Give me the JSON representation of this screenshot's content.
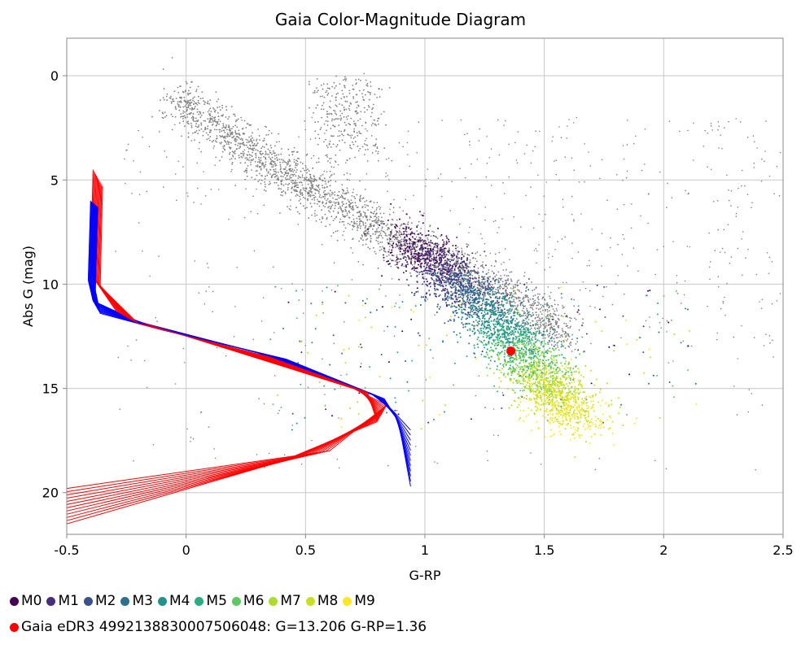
{
  "chart_data": {
    "type": "scatter",
    "title": "Gaia Color-Magnitude Diagram",
    "xlabel": "G-RP",
    "ylabel": "Abs G (mag)",
    "xlim": [
      -0.5,
      2.5
    ],
    "ylim": [
      22,
      -1.8
    ],
    "y_inverted": true,
    "grid": true,
    "x_ticks": [
      "-0.5",
      "0",
      "0.5",
      "1",
      "1.5",
      "2",
      "2.5"
    ],
    "y_ticks": [
      "0",
      "5",
      "10",
      "15",
      "20"
    ],
    "background_color": "#808080",
    "legend_placement": "bottom",
    "series": [
      {
        "name": "M0",
        "color": "#440154",
        "center": [
          1.0,
          8.6
        ]
      },
      {
        "name": "M1",
        "color": "#472d7b",
        "center": [
          1.08,
          9.3
        ]
      },
      {
        "name": "M2",
        "color": "#3b528b",
        "center": [
          1.15,
          10.2
        ]
      },
      {
        "name": "M3",
        "color": "#2c728e",
        "center": [
          1.25,
          11.1
        ]
      },
      {
        "name": "M4",
        "color": "#21918c",
        "center": [
          1.32,
          12.0
        ]
      },
      {
        "name": "M5",
        "color": "#28ae80",
        "center": [
          1.38,
          12.9
        ]
      },
      {
        "name": "M6",
        "color": "#5ec962",
        "center": [
          1.45,
          13.8
        ]
      },
      {
        "name": "M7",
        "color": "#addc30",
        "center": [
          1.5,
          14.6
        ]
      },
      {
        "name": "M8",
        "color": "#c8e020",
        "center": [
          1.55,
          15.3
        ]
      },
      {
        "name": "M9",
        "color": "#fde725",
        "center": [
          1.58,
          15.9
        ]
      }
    ],
    "highlight": {
      "name": "Gaia eDR3 4992138830007506048: G=13.206 G-RP=1.36",
      "x": 1.36,
      "y": 13.206,
      "color": "#ff0000"
    },
    "isochrones": {
      "colors": [
        "#0000ff",
        "#ff0000"
      ],
      "count": 12
    }
  }
}
